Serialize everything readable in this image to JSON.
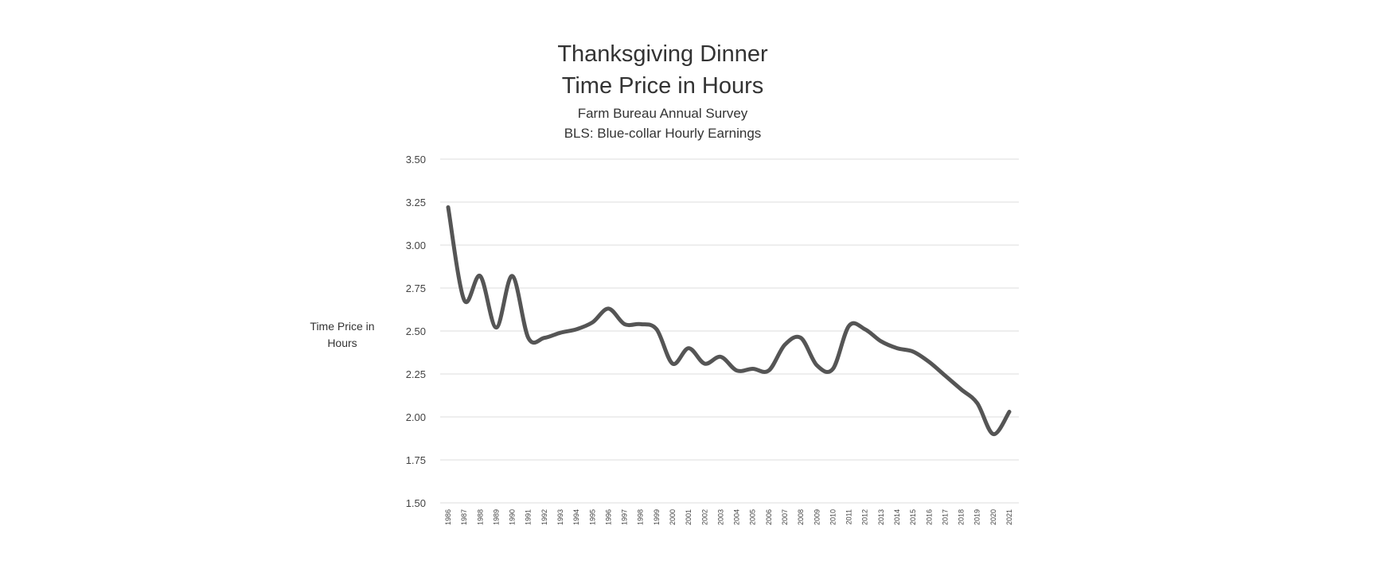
{
  "chart_data": {
    "type": "line",
    "title": "Thanksgiving Dinner",
    "title2": "Time Price in Hours",
    "subtitle1": "Farm Bureau Annual Survey",
    "subtitle2": "BLS: Blue-collar Hourly Earnings",
    "xlabel": "",
    "ylabel": "Time Price in Hours",
    "ylim": [
      1.5,
      3.5
    ],
    "yticks": [
      "1.50",
      "1.75",
      "2.00",
      "2.25",
      "2.50",
      "2.75",
      "3.00",
      "3.25",
      "3.50"
    ],
    "grid": true,
    "line_color": "#555555",
    "categories": [
      "1986",
      "1987",
      "1988",
      "1989",
      "1990",
      "1991",
      "1992",
      "1993",
      "1994",
      "1995",
      "1996",
      "1997",
      "1998",
      "1999",
      "2000",
      "2001",
      "2002",
      "2003",
      "2004",
      "2005",
      "2006",
      "2007",
      "2008",
      "2009",
      "2010",
      "2011",
      "2012",
      "2013",
      "2014",
      "2015",
      "2016",
      "2017",
      "2018",
      "2019",
      "2020",
      "2021"
    ],
    "series": [
      {
        "values": [
          3.22,
          2.68,
          2.82,
          2.52,
          2.82,
          2.46,
          2.46,
          2.49,
          2.51,
          2.55,
          2.63,
          2.54,
          2.54,
          2.51,
          2.31,
          2.4,
          2.31,
          2.35,
          2.27,
          2.28,
          2.27,
          2.42,
          2.46,
          2.3,
          2.28,
          2.53,
          2.51,
          2.44,
          2.4,
          2.38,
          2.32,
          2.24,
          2.16,
          2.08,
          1.9,
          2.03
        ]
      }
    ]
  }
}
